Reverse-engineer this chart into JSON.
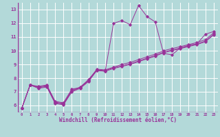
{
  "title": "",
  "xlabel": "Windchill (Refroidissement éolien,°C)",
  "ylabel": "",
  "xlim": [
    -0.5,
    23.5
  ],
  "ylim": [
    5.5,
    13.5
  ],
  "xticks": [
    0,
    1,
    2,
    3,
    4,
    5,
    6,
    7,
    8,
    9,
    10,
    11,
    12,
    13,
    14,
    15,
    16,
    17,
    18,
    19,
    20,
    21,
    22,
    23
  ],
  "yticks": [
    6,
    7,
    8,
    9,
    10,
    11,
    12,
    13
  ],
  "bg_color": "#b3d9d9",
  "line_color": "#993399",
  "grid_color": "#ffffff",
  "lines": [
    {
      "x": [
        0,
        1,
        2,
        3,
        4,
        5,
        6,
        7,
        8,
        9,
        10,
        11,
        12,
        13,
        14,
        15,
        16,
        17,
        18,
        19,
        20,
        21,
        22,
        23
      ],
      "y": [
        5.8,
        7.5,
        7.4,
        7.5,
        6.3,
        6.2,
        7.2,
        7.3,
        7.9,
        8.6,
        8.5,
        12.0,
        12.2,
        11.9,
        13.3,
        12.5,
        12.1,
        9.8,
        9.7,
        10.2,
        10.4,
        10.5,
        11.2,
        11.4
      ]
    },
    {
      "x": [
        0,
        1,
        2,
        3,
        4,
        5,
        6,
        7,
        8,
        9,
        10,
        11,
        12,
        13,
        14,
        15,
        16,
        17,
        18,
        19,
        20,
        21,
        22,
        23
      ],
      "y": [
        5.8,
        7.5,
        7.35,
        7.45,
        6.25,
        6.15,
        7.1,
        7.35,
        7.85,
        8.65,
        8.6,
        8.8,
        9.0,
        9.15,
        9.35,
        9.55,
        9.75,
        10.0,
        10.15,
        10.3,
        10.45,
        10.6,
        10.8,
        11.3
      ]
    },
    {
      "x": [
        0,
        1,
        2,
        3,
        4,
        5,
        6,
        7,
        8,
        9,
        10,
        11,
        12,
        13,
        14,
        15,
        16,
        17,
        18,
        19,
        20,
        21,
        22,
        23
      ],
      "y": [
        5.8,
        7.5,
        7.3,
        7.4,
        6.2,
        6.1,
        7.05,
        7.3,
        7.8,
        8.6,
        8.55,
        8.75,
        8.9,
        9.05,
        9.25,
        9.45,
        9.65,
        9.9,
        10.05,
        10.2,
        10.35,
        10.5,
        10.7,
        11.2
      ]
    },
    {
      "x": [
        0,
        1,
        2,
        3,
        4,
        5,
        6,
        7,
        8,
        9,
        10,
        11,
        12,
        13,
        14,
        15,
        16,
        17,
        18,
        19,
        20,
        21,
        22,
        23
      ],
      "y": [
        5.8,
        7.5,
        7.25,
        7.35,
        6.15,
        6.05,
        7.0,
        7.25,
        7.75,
        8.55,
        8.5,
        8.7,
        8.85,
        9.0,
        9.2,
        9.4,
        9.6,
        9.85,
        10.0,
        10.15,
        10.3,
        10.45,
        10.65,
        11.15
      ]
    }
  ]
}
